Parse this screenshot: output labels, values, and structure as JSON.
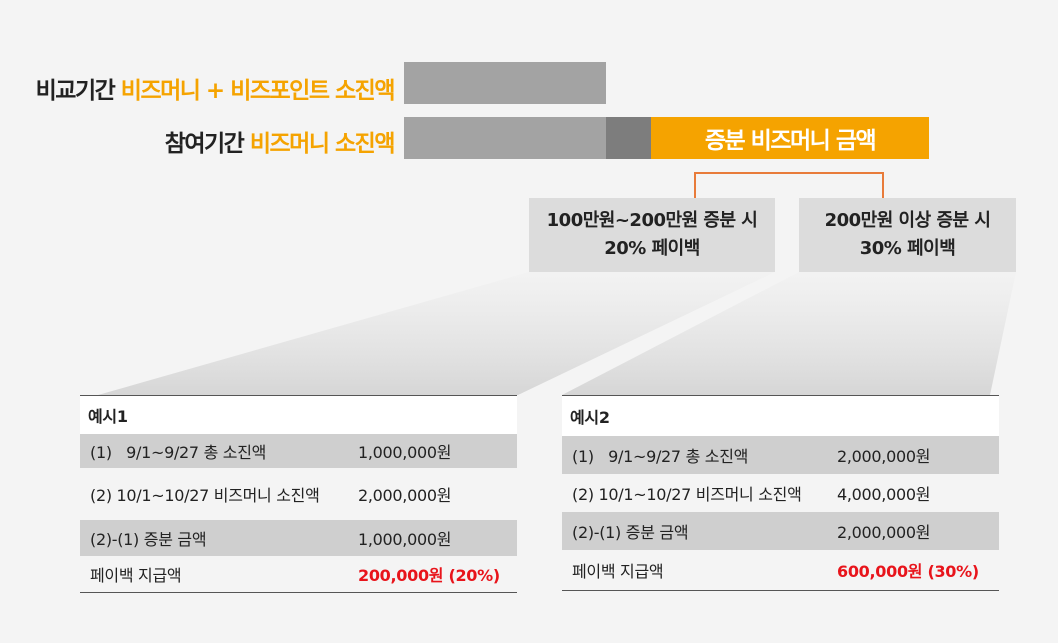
{
  "comparison": {
    "label_prefix": "비교기간",
    "label_highlight": "비즈머니 + 비즈포인트 소진액"
  },
  "participation": {
    "label_prefix": "참여기간",
    "label_highlight": "비즈머니 소진액",
    "increment_label": "증분 비즈머니 금액"
  },
  "tiers": [
    {
      "line1": "100만원~200만원 증분 시",
      "line2": "20% 페이백"
    },
    {
      "line1": "200만원 이상 증분 시",
      "line2": "30% 페이백"
    }
  ],
  "examples": [
    {
      "title": "예시1",
      "rows": [
        {
          "label": "(1)   9/1~9/27 총 소진액",
          "value": "1,000,000원"
        },
        {
          "label": "(2) 10/1~10/27 비즈머니 소진액",
          "value": "2,000,000원"
        },
        {
          "label": "(2)-(1) 증분 금액",
          "value": "1,000,000원"
        },
        {
          "label": "페이백 지급액",
          "value": "200,000원 (20%)"
        }
      ]
    },
    {
      "title": "예시2",
      "rows": [
        {
          "label": "(1)   9/1~9/27 총 소진액",
          "value": "2,000,000원"
        },
        {
          "label": "(2) 10/1~10/27 비즈머니 소진액",
          "value": "4,000,000원"
        },
        {
          "label": "(2)-(1) 증분 금액",
          "value": "2,000,000원"
        },
        {
          "label": "페이백 지급액",
          "value": "600,000원 (30%)"
        }
      ]
    }
  ],
  "colors": {
    "accent": "#f5a300",
    "highlight": "#e8141b",
    "bar": "#a3a3a3",
    "bar_dark": "#7d7d7d"
  }
}
